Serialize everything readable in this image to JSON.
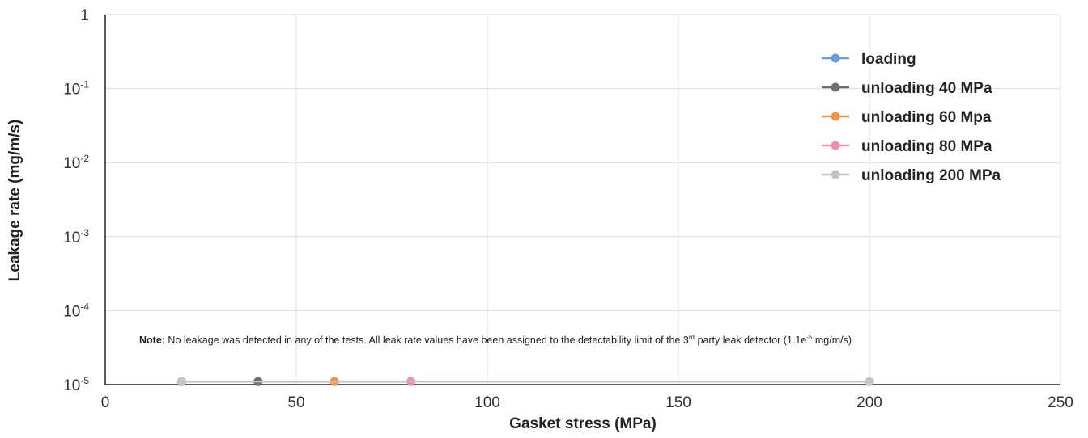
{
  "chart_data": {
    "type": "line",
    "xlabel": "Gasket stress (MPa)",
    "ylabel": "Leakage rate (mg/m/s)",
    "x_scale": "linear",
    "xlim": [
      0,
      250
    ],
    "x_ticks": [
      "0",
      "50",
      "100",
      "150",
      "200",
      "250"
    ],
    "y_scale": "log",
    "ylim": [
      1e-05,
      1
    ],
    "y_ticks": [
      {
        "base": "1",
        "exp": ""
      },
      {
        "base": "10",
        "exp": "-1"
      },
      {
        "base": "10",
        "exp": "-2"
      },
      {
        "base": "10",
        "exp": "-3"
      },
      {
        "base": "10",
        "exp": "-4"
      },
      {
        "base": "10",
        "exp": "-5"
      }
    ],
    "grid": true,
    "legend_position": "top-right",
    "series": [
      {
        "name": "loading",
        "color": "#6a9bd8",
        "x": [
          20,
          40,
          60,
          80,
          200
        ],
        "y": [
          1.1e-05,
          1.1e-05,
          1.1e-05,
          1.1e-05,
          1.1e-05
        ]
      },
      {
        "name": "unloading 40 MPa",
        "color": "#6e6e76",
        "x": [
          20,
          40
        ],
        "y": [
          1.1e-05,
          1.1e-05
        ]
      },
      {
        "name": "unloading 60 Mpa",
        "color": "#f0964a",
        "x": [
          20,
          60
        ],
        "y": [
          1.1e-05,
          1.1e-05
        ]
      },
      {
        "name": "unloading 80 MPa",
        "color": "#ef90a8",
        "x": [
          20,
          80
        ],
        "y": [
          1.1e-05,
          1.1e-05
        ]
      },
      {
        "name": "unloading 200 MPa",
        "color": "#c4c4c6",
        "x": [
          20,
          200
        ],
        "y": [
          1.1e-05,
          1.1e-05
        ]
      }
    ],
    "note": {
      "bold": "Note:",
      "text1": " No leakage was detected in any of the tests. All leak rate values have been assigned to the detectability limit of the 3",
      "sup1": "rd",
      "text2": " party leak detector (1.1e",
      "sup2": "-5",
      "text3": " mg/m/s)"
    }
  }
}
